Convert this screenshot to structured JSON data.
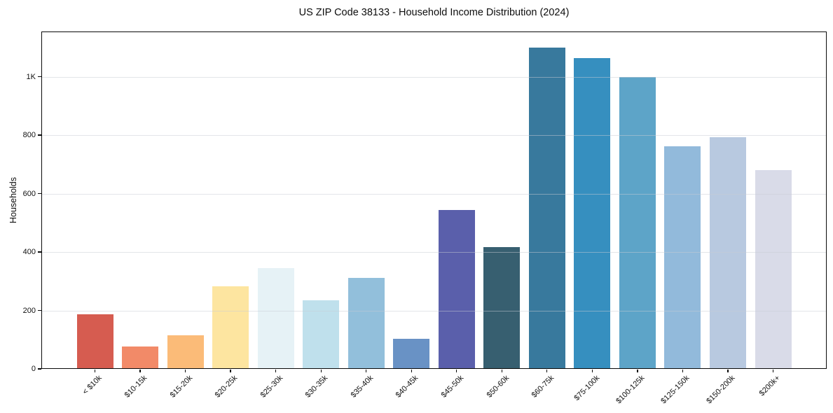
{
  "chart_data": {
    "type": "bar",
    "title": "US ZIP Code 38133 - Household Income Distribution (2024)",
    "xlabel": "",
    "ylabel": "Households",
    "categories": [
      "< $10k",
      "$10-15k",
      "$15-20k",
      "$20-25k",
      "$25-30k",
      "$30-35k",
      "$35-40k",
      "$40-45k",
      "$45-50k",
      "$50-60k",
      "$60-75k",
      "$75-100k",
      "$100-125k",
      "$125-150k",
      "$150-200k",
      "$200k+"
    ],
    "values": [
      188,
      76,
      116,
      283,
      345,
      235,
      311,
      102,
      545,
      418,
      1100,
      1064,
      1000,
      762,
      794,
      680
    ],
    "bar_colors": [
      "#d65c50",
      "#f28a68",
      "#fbbb78",
      "#fde5a0",
      "#e6f2f6",
      "#bfe0ec",
      "#92bfdb",
      "#6992c5",
      "#5a5fab",
      "#375f70",
      "#38799d",
      "#368fbf",
      "#5da4c8",
      "#92badb",
      "#b8c9e0",
      "#d9dbe8"
    ],
    "ylim": [
      0,
      1155
    ],
    "y_ticks": [
      {
        "value": 0,
        "label": "0"
      },
      {
        "value": 200,
        "label": "200"
      },
      {
        "value": 400,
        "label": "400"
      },
      {
        "value": 600,
        "label": "600"
      },
      {
        "value": 800,
        "label": "800"
      },
      {
        "value": 1000,
        "label": "1K"
      }
    ],
    "grid": "horizontal-only",
    "legend": "none",
    "background_color": "#ffffff",
    "frame_color": "#0a0a0a",
    "grid_color": "#e8e9ec"
  }
}
